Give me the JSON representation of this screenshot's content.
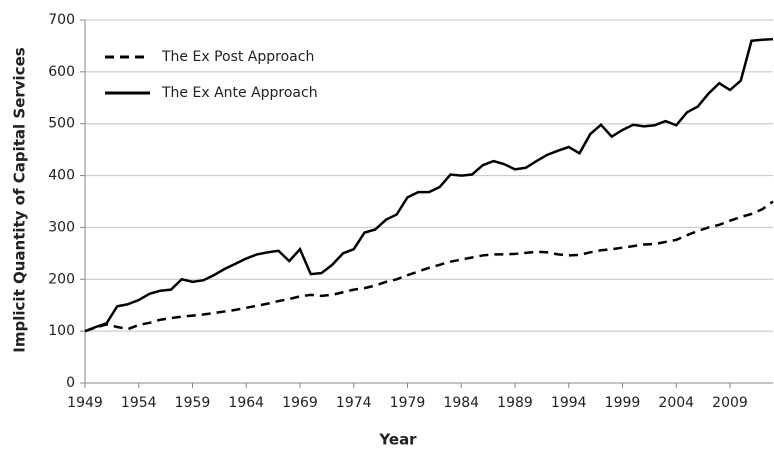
{
  "chart_data": {
    "type": "line",
    "xlabel": "Year",
    "ylabel": "Implicit Quantity of Capital Services",
    "x": [
      1949,
      1950,
      1951,
      1952,
      1953,
      1954,
      1955,
      1956,
      1957,
      1958,
      1959,
      1960,
      1961,
      1962,
      1963,
      1964,
      1965,
      1966,
      1967,
      1968,
      1969,
      1970,
      1971,
      1972,
      1973,
      1974,
      1975,
      1976,
      1977,
      1978,
      1979,
      1980,
      1981,
      1982,
      1983,
      1984,
      1985,
      1986,
      1987,
      1988,
      1989,
      1990,
      1991,
      1992,
      1993,
      1994,
      1995,
      1996,
      1997,
      1998,
      1999,
      2000,
      2001,
      2002,
      2003,
      2004,
      2005,
      2006,
      2007,
      2008,
      2009,
      2010,
      2011,
      2012,
      2013
    ],
    "series": [
      {
        "name": "The Ex Post Approach",
        "color": "#000000",
        "dash": true,
        "values": [
          100,
          107,
          113,
          108,
          104,
          112,
          116,
          122,
          125,
          128,
          130,
          132,
          135,
          138,
          141,
          145,
          149,
          153,
          158,
          162,
          167,
          170,
          168,
          170,
          175,
          180,
          183,
          188,
          195,
          200,
          208,
          215,
          222,
          228,
          234,
          238,
          242,
          246,
          248,
          248,
          249,
          251,
          253,
          252,
          248,
          246,
          247,
          252,
          256,
          258,
          261,
          264,
          267,
          268,
          272,
          276,
          285,
          293,
          300,
          305,
          313,
          320,
          326,
          335,
          350
        ]
      },
      {
        "name": "The Ex Ante Approach",
        "color": "#000000",
        "dash": false,
        "values": [
          100,
          108,
          115,
          148,
          152,
          160,
          172,
          178,
          180,
          200,
          195,
          198,
          208,
          220,
          230,
          240,
          248,
          252,
          255,
          235,
          258,
          210,
          212,
          228,
          250,
          258,
          290,
          296,
          315,
          325,
          358,
          368,
          368,
          378,
          402,
          400,
          402,
          420,
          428,
          422,
          412,
          415,
          428,
          440,
          448,
          455,
          443,
          480,
          498,
          475,
          488,
          498,
          495,
          497,
          505,
          497,
          522,
          533,
          558,
          578,
          565,
          583,
          660,
          662,
          663
        ]
      }
    ],
    "xlim": [
      1949,
      2013
    ],
    "xticks": [
      1949,
      1954,
      1959,
      1964,
      1969,
      1974,
      1979,
      1984,
      1989,
      1994,
      1999,
      2004,
      2009
    ],
    "ylim": [
      0,
      700
    ],
    "yticks": [
      0,
      100,
      200,
      300,
      400,
      500,
      600,
      700
    ],
    "grid": true,
    "legend": "upper-left"
  }
}
